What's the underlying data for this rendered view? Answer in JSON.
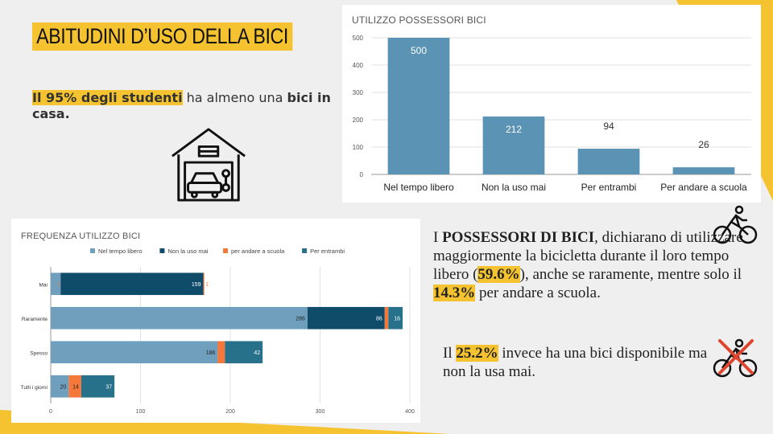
{
  "title": "ABITUDINI D’USO DELLA BICI",
  "intro": {
    "highlight": "Il 95% degli studenti",
    "middle": " ha almeno una ",
    "bold2": "bici in casa."
  },
  "colors": {
    "accent": "#f5c330",
    "bar1": "#5a93b3",
    "series": [
      "#6f9fbd",
      "#0f4c6a",
      "#f5783a",
      "#27728a"
    ]
  },
  "icons": [
    "garage-icon",
    "cyclist-icon",
    "crossed-cyclist-icon"
  ],
  "chart1_title": "UTILIZZO POSSESSORI BICI",
  "chart2_title": "FREQUENZA UTILIZZO BICI",
  "chart_data": [
    {
      "type": "bar",
      "title": "UTILIZZO POSSESSORI BICI",
      "categories": [
        "Nel tempo libero",
        "Non la uso mai",
        "Per entrambi",
        "Per andare a scuola"
      ],
      "values": [
        500,
        212,
        94,
        26
      ],
      "ylim": [
        0,
        500
      ],
      "yticks": [
        0,
        100,
        200,
        300,
        400,
        500
      ],
      "grid": true,
      "data_labels": true
    },
    {
      "type": "bar",
      "orientation": "horizontal",
      "stacked": true,
      "title": "FREQUENZA UTILIZZO BICI",
      "categories": [
        "Mai",
        "Raramente",
        "Spesso",
        "Tutti i giorni"
      ],
      "legend_position": "top",
      "series": [
        {
          "name": "Nel tempo libero",
          "values": [
            11,
            286,
            186,
            20
          ],
          "labels": [
            "11",
            "286",
            "186",
            "20"
          ]
        },
        {
          "name": "Non la uso mai",
          "values": [
            159,
            86,
            0,
            0
          ],
          "labels": [
            "159",
            "86",
            "",
            ""
          ]
        },
        {
          "name": "per andare a scuola",
          "values": [
            1,
            4,
            8,
            14
          ],
          "labels": [
            "1",
            "4",
            "8",
            "14"
          ]
        },
        {
          "name": "Per entrambi",
          "values": [
            0,
            16,
            42,
            37
          ],
          "labels": [
            "",
            "16",
            "42",
            "37"
          ]
        }
      ],
      "xlim": [
        0,
        400
      ],
      "xticks": [
        0,
        100,
        200,
        300,
        400
      ],
      "grid": true
    }
  ],
  "right_text": {
    "p1": "I ",
    "p1_bold": "POSSESSORI DI BICI",
    "p1_rest": ", dichiarano di utilizzare maggiormente la bicicletta durante il loro tempo libero (",
    "pct1": "59.6%",
    "p1_rest2": "),  anche se raramente, mentre solo il ",
    "pct2": "14.3%",
    "p1_end": " per andare a scuola."
  },
  "right_text2": {
    "p1": "Il ",
    "pct": "25.2%",
    "rest": "  invece ha una bici disponibile ma non la usa mai."
  }
}
